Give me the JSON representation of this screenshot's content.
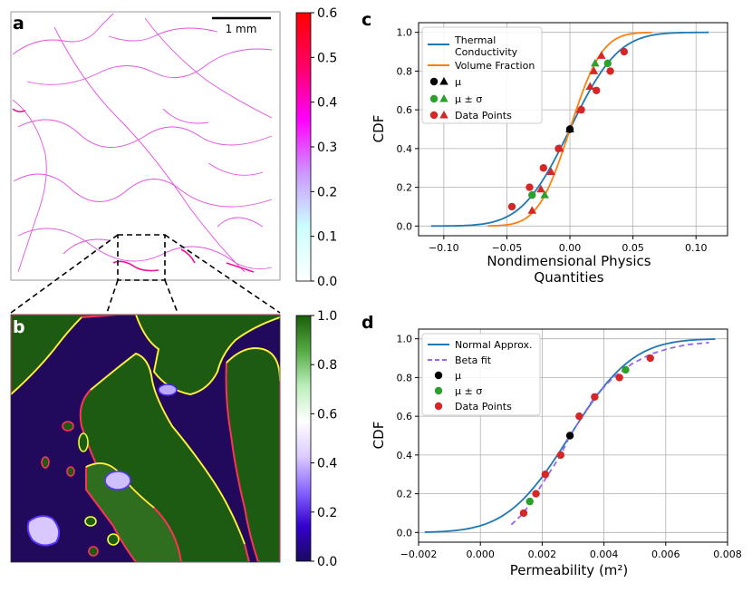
{
  "panels": {
    "a": {
      "letter": "a",
      "scale_bar_label": "1 mm",
      "colorbar": {
        "min": 0.0,
        "max": 0.6,
        "ticks": [
          0.0,
          0.1,
          0.2,
          0.3,
          0.4,
          0.5,
          0.6
        ],
        "tick_labels": [
          "0.0",
          "0.1",
          "0.2",
          "0.3",
          "0.4",
          "0.5",
          "0.6"
        ],
        "colors": [
          "#ffffff",
          "#ccffff",
          "#cc99ff",
          "#ff00ff",
          "#ff0066",
          "#ff0000"
        ]
      }
    },
    "b": {
      "letter": "b",
      "colorbar": {
        "min": 0.0,
        "max": 1.0,
        "ticks": [
          0.0,
          0.2,
          0.4,
          0.6,
          0.8,
          1.0
        ],
        "tick_labels": [
          "0.0",
          "0.2",
          "0.4",
          "0.6",
          "0.8",
          "1.0"
        ],
        "colors": [
          "#1a0a5e",
          "#3300cc",
          "#8866ff",
          "#ddccff",
          "#ffffff",
          "#bbeebb",
          "#55aa44",
          "#1a5e0a"
        ]
      }
    }
  },
  "chart_data": [
    {
      "panel": "c",
      "letter": "c",
      "type": "line",
      "title": "",
      "xlabel_lines": [
        "Nondimensional Physics",
        "Quantities"
      ],
      "ylabel": "CDF",
      "xlim": [
        -0.12,
        0.125
      ],
      "ylim": [
        -0.05,
        1.05
      ],
      "grid": true,
      "x_ticks": [
        -0.1,
        -0.05,
        0.0,
        0.05,
        0.1
      ],
      "x_tick_labels": [
        "−0.10",
        "−0.05",
        "0.00",
        "0.05",
        "0.10"
      ],
      "y_ticks": [
        0.0,
        0.2,
        0.4,
        0.6,
        0.8,
        1.0
      ],
      "y_tick_labels": [
        "0.0",
        "0.2",
        "0.4",
        "0.6",
        "0.8",
        "1.0"
      ],
      "legend_position": "top-left",
      "legend": [
        {
          "kind": "line",
          "color": "#1f77b4",
          "lines": [
            "Thermal",
            "Conductivity"
          ]
        },
        {
          "kind": "line",
          "color": "#ff7f0e",
          "lines": [
            "Volume Fraction"
          ]
        },
        {
          "kind": "markers",
          "colors": [
            "#000000",
            "#000000"
          ],
          "lines": [
            "μ"
          ]
        },
        {
          "kind": "markers",
          "colors": [
            "#2ca02c",
            "#2ca02c"
          ],
          "lines": [
            "μ ± σ"
          ]
        },
        {
          "kind": "markers",
          "colors": [
            "#d62728",
            "#d62728"
          ],
          "lines": [
            "Data Points"
          ]
        }
      ],
      "series": [
        {
          "name": "Thermal Conductivity",
          "kind": "normal_cdf",
          "color": "#1f77b4",
          "mean": 0.0,
          "sd": 0.03,
          "x_range": [
            -0.11,
            0.11
          ],
          "mu": {
            "x": 0.0,
            "y": 0.5,
            "color": "#000000"
          },
          "mu_pm_sigma": [
            {
              "x": -0.03,
              "y": 0.16
            },
            {
              "x": 0.03,
              "y": 0.84
            }
          ],
          "data_points": [
            {
              "x": -0.046,
              "y": 0.1
            },
            {
              "x": -0.032,
              "y": 0.2
            },
            {
              "x": -0.021,
              "y": 0.3
            },
            {
              "x": -0.009,
              "y": 0.4
            },
            {
              "x": 0.009,
              "y": 0.6
            },
            {
              "x": 0.021,
              "y": 0.7
            },
            {
              "x": 0.032,
              "y": 0.8
            },
            {
              "x": 0.043,
              "y": 0.9
            }
          ]
        },
        {
          "name": "Volume Fraction",
          "kind": "normal_cdf",
          "color": "#ff7f0e",
          "mean": 0.0,
          "sd": 0.02,
          "x_range": [
            -0.065,
            0.065
          ],
          "mu": {
            "x": 0.0,
            "y": 0.5,
            "color": "#000000"
          },
          "mu_pm_sigma": [
            {
              "x": -0.02,
              "y": 0.16
            },
            {
              "x": 0.02,
              "y": 0.84
            }
          ],
          "data_points": [
            {
              "x": -0.03,
              "y": 0.08
            },
            {
              "x": -0.023,
              "y": 0.19
            },
            {
              "x": -0.015,
              "y": 0.28
            },
            {
              "x": -0.008,
              "y": 0.4
            },
            {
              "x": 0.008,
              "y": 0.6
            },
            {
              "x": 0.016,
              "y": 0.72
            },
            {
              "x": 0.019,
              "y": 0.8
            },
            {
              "x": 0.025,
              "y": 0.88
            }
          ]
        }
      ]
    },
    {
      "panel": "d",
      "letter": "d",
      "type": "line",
      "title": "",
      "xlabel": "Permeability (m²)",
      "ylabel": "CDF",
      "xlim": [
        -0.002,
        0.008
      ],
      "ylim": [
        -0.05,
        1.05
      ],
      "grid": true,
      "x_ticks": [
        -0.002,
        0.0,
        0.002,
        0.004,
        0.006,
        0.008
      ],
      "x_tick_labels": [
        "−0.002",
        "0.000",
        "0.002",
        "0.004",
        "0.006",
        "0.008"
      ],
      "y_ticks": [
        0.0,
        0.2,
        0.4,
        0.6,
        0.8,
        1.0
      ],
      "y_tick_labels": [
        "0.0",
        "0.2",
        "0.4",
        "0.6",
        "0.8",
        "1.0"
      ],
      "legend_position": "top-left",
      "legend": [
        {
          "kind": "line",
          "color": "#1f77b4",
          "lines": [
            "Normal Approx."
          ]
        },
        {
          "kind": "dashed",
          "color": "#9467f0",
          "lines": [
            "Beta fit"
          ]
        },
        {
          "kind": "marker",
          "color": "#000000",
          "lines": [
            "μ"
          ]
        },
        {
          "kind": "marker",
          "color": "#2ca02c",
          "lines": [
            "μ ± σ"
          ]
        },
        {
          "kind": "marker",
          "color": "#d62728",
          "lines": [
            "Data Points"
          ]
        }
      ],
      "series": [
        {
          "name": "Normal Approx.",
          "kind": "normal_cdf",
          "color": "#1f77b4",
          "mean": 0.0029,
          "sd": 0.0016,
          "x_range": [
            -0.0018,
            0.0076
          ]
        },
        {
          "name": "Beta fit",
          "kind": "curve",
          "color": "#9467f0",
          "dashed": true,
          "points": [
            {
              "x": 0.001,
              "y": 0.04
            },
            {
              "x": 0.0014,
              "y": 0.1
            },
            {
              "x": 0.0018,
              "y": 0.2
            },
            {
              "x": 0.0022,
              "y": 0.3
            },
            {
              "x": 0.0026,
              "y": 0.4
            },
            {
              "x": 0.0029,
              "y": 0.5
            },
            {
              "x": 0.0033,
              "y": 0.6
            },
            {
              "x": 0.0037,
              "y": 0.7
            },
            {
              "x": 0.0043,
              "y": 0.8
            },
            {
              "x": 0.0049,
              "y": 0.87
            },
            {
              "x": 0.0055,
              "y": 0.92
            },
            {
              "x": 0.0061,
              "y": 0.95
            },
            {
              "x": 0.0067,
              "y": 0.97
            },
            {
              "x": 0.0074,
              "y": 0.98
            }
          ]
        }
      ],
      "mu": {
        "x": 0.0029,
        "y": 0.5
      },
      "mu_pm_sigma": [
        {
          "x": 0.0016,
          "y": 0.16
        },
        {
          "x": 0.0047,
          "y": 0.84
        }
      ],
      "data_points": [
        {
          "x": 0.0014,
          "y": 0.1
        },
        {
          "x": 0.0018,
          "y": 0.2
        },
        {
          "x": 0.0021,
          "y": 0.3
        },
        {
          "x": 0.0026,
          "y": 0.4
        },
        {
          "x": 0.0032,
          "y": 0.6
        },
        {
          "x": 0.0037,
          "y": 0.7
        },
        {
          "x": 0.0045,
          "y": 0.8
        },
        {
          "x": 0.0055,
          "y": 0.9
        }
      ]
    }
  ]
}
